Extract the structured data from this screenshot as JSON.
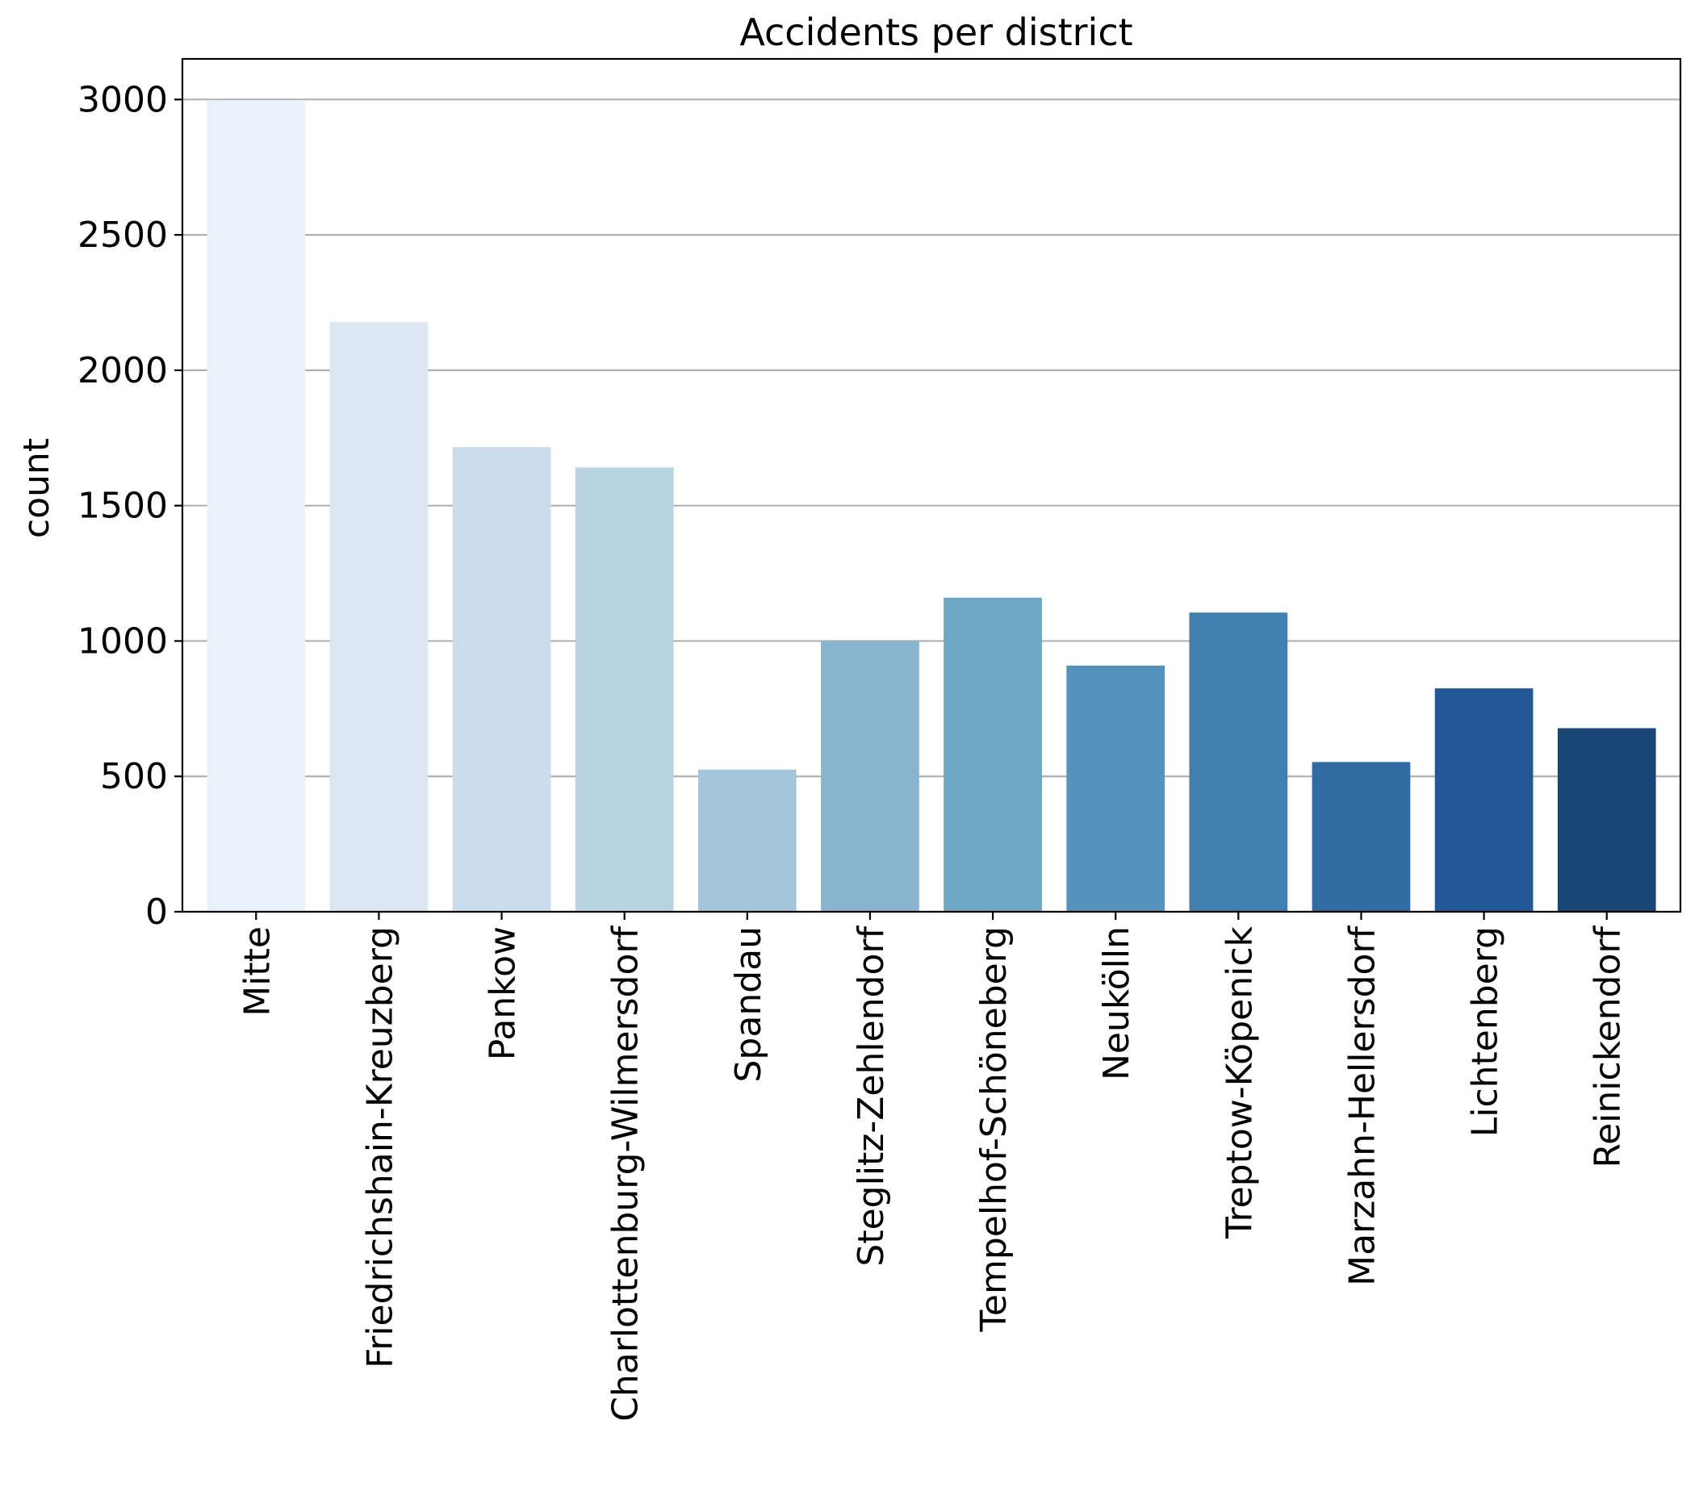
{
  "chart_data": {
    "type": "bar",
    "title": "Accidents per district",
    "xlabel": "",
    "ylabel": "count",
    "ylim": [
      0,
      3150
    ],
    "yticks": [
      0,
      500,
      1000,
      1500,
      2000,
      2500,
      3000
    ],
    "grid": "horizontal",
    "categories": [
      "Mitte",
      "Friedrichshain-Kreuzberg",
      "Pankow",
      "Charlottenburg-Wilmersdorf",
      "Spandau",
      "Steglitz-Zehlendorf",
      "Tempelhof-Schöneberg",
      "Neukölln",
      "Treptow-Köpenick",
      "Marzahn-Hellersdorf",
      "Lichtenberg",
      "Reinickendorf"
    ],
    "values": [
      2998,
      2178,
      1716,
      1641,
      525,
      1000,
      1160,
      909,
      1105,
      553,
      825,
      678
    ],
    "colors": [
      "#e9f1fa",
      "#dce7f3",
      "#cadcec",
      "#bad3e3",
      "#a4c6da",
      "#87b4cf",
      "#6ea6c5",
      "#5592bc",
      "#417fae",
      "#306ba3",
      "#225896",
      "#1a4676"
    ]
  }
}
